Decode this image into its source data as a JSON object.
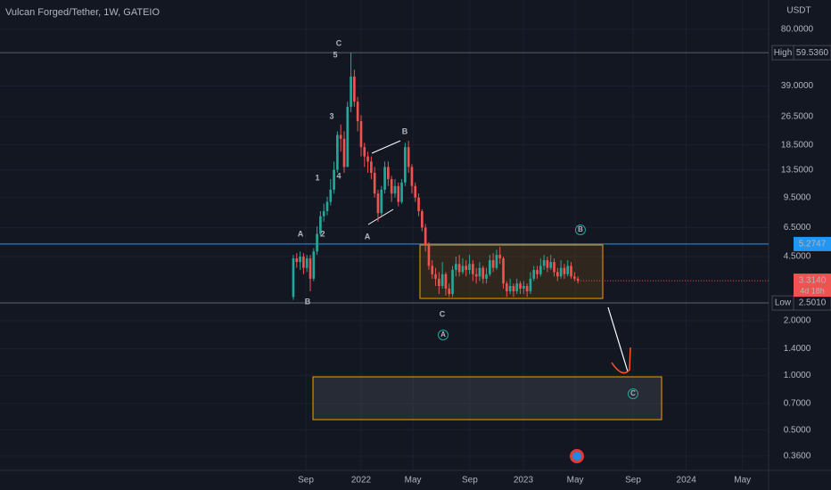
{
  "chart_data": {
    "type": "candlestick",
    "title": "Vulcan Forged/Tether, 1W, GATEIO",
    "currency": "USDT",
    "log_scale": true,
    "up_color": "#26a69a",
    "down_color": "#ef5350",
    "x": [
      0,
      1,
      2,
      3,
      4,
      5,
      6,
      7,
      8,
      9,
      10,
      11,
      12,
      13,
      14,
      15,
      16,
      17,
      18,
      19,
      20,
      21,
      22,
      23,
      24,
      25,
      26,
      27,
      28,
      29,
      30,
      31,
      32,
      33,
      34,
      35,
      36,
      37,
      38,
      39,
      40,
      41,
      42,
      43,
      44,
      45,
      46,
      47,
      48,
      49,
      50,
      51,
      52,
      53,
      54,
      55,
      56,
      57,
      58,
      59,
      60,
      61,
      62,
      63,
      64,
      65,
      66,
      67,
      68,
      69,
      70,
      71,
      72,
      73,
      74,
      75,
      76,
      77,
      78,
      79,
      80,
      81,
      82,
      83,
      84
    ],
    "ohlc": [
      [
        2.7,
        4.6,
        2.6,
        4.4
      ],
      [
        4.4,
        4.7,
        3.9,
        4.2
      ],
      [
        4.2,
        4.8,
        3.8,
        4.5
      ],
      [
        4.5,
        4.7,
        3.6,
        3.9
      ],
      [
        3.9,
        4.6,
        3.7,
        4.4
      ],
      [
        4.4,
        4.6,
        2.9,
        3.4
      ],
      [
        3.4,
        5.0,
        3.3,
        4.8
      ],
      [
        4.8,
        6.6,
        4.6,
        6.0
      ],
      [
        6.0,
        8.0,
        5.8,
        7.5
      ],
      [
        7.5,
        8.8,
        7.0,
        8.0
      ],
      [
        8.0,
        9.6,
        7.6,
        9.0
      ],
      [
        9.0,
        12,
        8.6,
        10.5
      ],
      [
        10.5,
        15,
        10,
        13.5
      ],
      [
        13.5,
        22,
        13,
        21
      ],
      [
        21,
        24,
        17,
        20
      ],
      [
        20,
        22,
        13,
        14
      ],
      [
        14,
        32,
        14,
        30
      ],
      [
        30,
        59.536,
        28,
        44
      ],
      [
        44,
        48,
        30,
        32
      ],
      [
        32,
        34,
        22,
        25
      ],
      [
        25,
        27,
        16,
        18
      ],
      [
        18,
        19,
        14,
        16
      ],
      [
        16,
        17,
        13,
        15
      ],
      [
        15,
        16,
        12,
        13
      ],
      [
        13,
        14,
        9.5,
        10
      ],
      [
        10,
        10.5,
        7,
        7.8
      ],
      [
        7.8,
        11,
        7.5,
        10.5
      ],
      [
        10.5,
        15,
        10,
        14
      ],
      [
        14,
        15,
        11,
        12
      ],
      [
        12,
        12.5,
        9,
        10
      ],
      [
        10,
        12,
        9.5,
        11
      ],
      [
        11,
        11.5,
        8.5,
        9
      ],
      [
        9,
        12,
        8.8,
        11.5
      ],
      [
        11.5,
        19,
        11,
        18
      ],
      [
        18,
        19.5,
        13,
        14
      ],
      [
        14,
        14.5,
        10,
        11
      ],
      [
        11,
        11.5,
        9,
        9.5
      ],
      [
        9.5,
        10,
        7.5,
        8
      ],
      [
        8,
        8.2,
        6.2,
        6.5
      ],
      [
        6.5,
        6.8,
        4.8,
        5.2
      ],
      [
        5.2,
        5.4,
        3.8,
        4.0
      ],
      [
        4.0,
        4.3,
        3.4,
        3.6
      ],
      [
        3.6,
        3.9,
        3.1,
        3.4
      ],
      [
        3.4,
        3.7,
        2.8,
        3.1
      ],
      [
        3.1,
        4.2,
        3.0,
        3.6
      ],
      [
        3.6,
        3.7,
        2.75,
        3.0
      ],
      [
        3.0,
        3.2,
        2.7,
        2.8
      ],
      [
        2.8,
        4.0,
        2.7,
        3.8
      ],
      [
        3.8,
        4.5,
        3.5,
        4.1
      ],
      [
        4.1,
        4.6,
        3.5,
        3.7
      ],
      [
        3.7,
        4.4,
        3.6,
        4.0
      ],
      [
        4.0,
        4.3,
        3.5,
        3.8
      ],
      [
        3.8,
        4.6,
        3.6,
        4.1
      ],
      [
        4.1,
        4.3,
        3.3,
        3.6
      ],
      [
        3.6,
        3.9,
        3.2,
        3.5
      ],
      [
        3.5,
        4.2,
        3.3,
        3.9
      ],
      [
        3.9,
        4.0,
        3.2,
        3.4
      ],
      [
        3.4,
        3.9,
        3.2,
        3.6
      ],
      [
        3.6,
        4.6,
        3.5,
        4.3
      ],
      [
        4.3,
        4.7,
        3.7,
        3.9
      ],
      [
        3.9,
        4.9,
        3.8,
        4.6
      ],
      [
        4.6,
        5.1,
        4.1,
        4.4
      ],
      [
        4.4,
        4.5,
        3.0,
        3.2
      ],
      [
        3.2,
        3.3,
        2.7,
        2.9
      ],
      [
        2.9,
        3.4,
        2.8,
        3.1
      ],
      [
        3.1,
        3.2,
        2.7,
        2.9
      ],
      [
        2.9,
        3.4,
        2.8,
        3.2
      ],
      [
        3.2,
        3.3,
        2.8,
        3.0
      ],
      [
        3.0,
        3.3,
        2.8,
        3.1
      ],
      [
        3.1,
        3.2,
        2.7,
        2.9
      ],
      [
        2.9,
        3.7,
        2.8,
        3.4
      ],
      [
        3.4,
        4.0,
        3.3,
        3.8
      ],
      [
        3.8,
        4.0,
        3.4,
        3.6
      ],
      [
        3.6,
        4.4,
        3.5,
        4.0
      ],
      [
        4.0,
        4.6,
        3.8,
        4.3
      ],
      [
        4.3,
        4.5,
        3.7,
        3.9
      ],
      [
        3.9,
        4.6,
        3.8,
        4.2
      ],
      [
        4.2,
        4.4,
        3.5,
        3.7
      ],
      [
        3.7,
        3.9,
        3.3,
        3.5
      ],
      [
        3.5,
        4.3,
        3.4,
        3.9
      ],
      [
        3.9,
        4.1,
        3.4,
        3.6
      ],
      [
        3.6,
        4.3,
        3.5,
        4.0
      ],
      [
        4.0,
        4.2,
        3.4,
        3.5
      ],
      [
        3.5,
        3.7,
        3.3,
        3.4
      ],
      [
        3.4,
        3.5,
        3.2,
        3.314
      ]
    ],
    "xlim": [
      -86.6,
      140.3
    ],
    "xticks": [
      {
        "value": 3.7,
        "label": "Sep"
      },
      {
        "value": 20,
        "label": "2022"
      },
      {
        "value": 35.3,
        "label": "May"
      },
      {
        "value": 52.1,
        "label": "Sep"
      },
      {
        "value": 67.9,
        "label": "2023"
      },
      {
        "value": 83.2,
        "label": "May"
      },
      {
        "value": 100.3,
        "label": "Sep"
      },
      {
        "value": 116,
        "label": "2024"
      },
      {
        "value": 132.6,
        "label": "May"
      }
    ],
    "ylim": [
      0.3,
      116
    ],
    "yticks": [
      {
        "value": 80,
        "label": "80.0000"
      },
      {
        "value": 39,
        "label": "39.0000"
      },
      {
        "value": 26.5,
        "label": "26.5000"
      },
      {
        "value": 18.5,
        "label": "18.5000"
      },
      {
        "value": 13.5,
        "label": "13.5000"
      },
      {
        "value": 9.5,
        "label": "9.5000"
      },
      {
        "value": 6.5,
        "label": "6.5000"
      },
      {
        "value": 4.5,
        "label": "4.5000"
      },
      {
        "value": 2,
        "label": "2.0000"
      },
      {
        "value": 1.4,
        "label": "1.4000"
      },
      {
        "value": 1,
        "label": "1.0000"
      },
      {
        "value": 0.7,
        "label": "0.7000"
      },
      {
        "value": 0.5,
        "label": "0.5000"
      },
      {
        "value": 0.36,
        "label": "0.3600"
      }
    ],
    "price_lines": [
      {
        "name": "High",
        "value": 59.536,
        "value_label": "59.5360",
        "color": "#5d606b"
      },
      {
        "value": 5.2747,
        "value_label": "5.2747",
        "color": "#2196f3"
      },
      {
        "name": "Low",
        "value": 2.501,
        "value_label": "2.5010",
        "color": "#5d606b"
      }
    ],
    "last_price": {
      "value": 3.314,
      "value_label": "3.3140",
      "countdown": "4d 18h",
      "color": "#ef5350"
    },
    "annotations": [
      {
        "text": "C",
        "color": "#ffffff"
      },
      {
        "text": "5",
        "color": "#ff9800"
      },
      {
        "text": "3",
        "color": "#ff9800"
      },
      {
        "text": "4",
        "color": "#ff9800"
      },
      {
        "text": "1",
        "color": "#ff9800"
      },
      {
        "text": "2",
        "color": "#ff9800"
      },
      {
        "text": "A",
        "color": "#ffffff"
      },
      {
        "text": "B",
        "color": "#ffffff"
      },
      {
        "text": "B",
        "color": "#ef5350"
      },
      {
        "text": "A",
        "color": "#ef5350"
      },
      {
        "text": "C",
        "color": "#ef5350"
      },
      {
        "text": "A",
        "color": "#26a69a",
        "circled": true
      },
      {
        "text": "B",
        "color": "#26a69a",
        "circled": true
      },
      {
        "text": "C",
        "color": "#26a69a",
        "circled": true
      }
    ]
  }
}
